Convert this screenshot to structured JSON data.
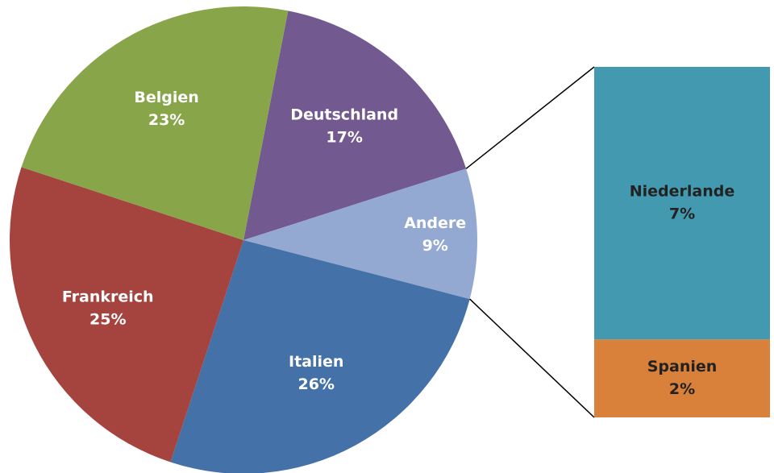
{
  "chart_data": {
    "type": "pie",
    "categories": [
      "Deutschland",
      "Andere",
      "Italien",
      "Frankreich",
      "Belgien"
    ],
    "values": [
      17,
      9,
      26,
      25,
      23
    ],
    "value_labels": [
      "17%",
      "9%",
      "26%",
      "25%",
      "23%"
    ],
    "colors": [
      "#725990",
      "#94a9d1",
      "#4472a8",
      "#a5443f",
      "#89a54a"
    ],
    "breakout": {
      "categories": [
        "Niederlande",
        "Spanien"
      ],
      "values": [
        7,
        2
      ],
      "value_labels": [
        "7%",
        "2%"
      ],
      "colors": [
        "#4399af",
        "#d9813a"
      ]
    }
  }
}
